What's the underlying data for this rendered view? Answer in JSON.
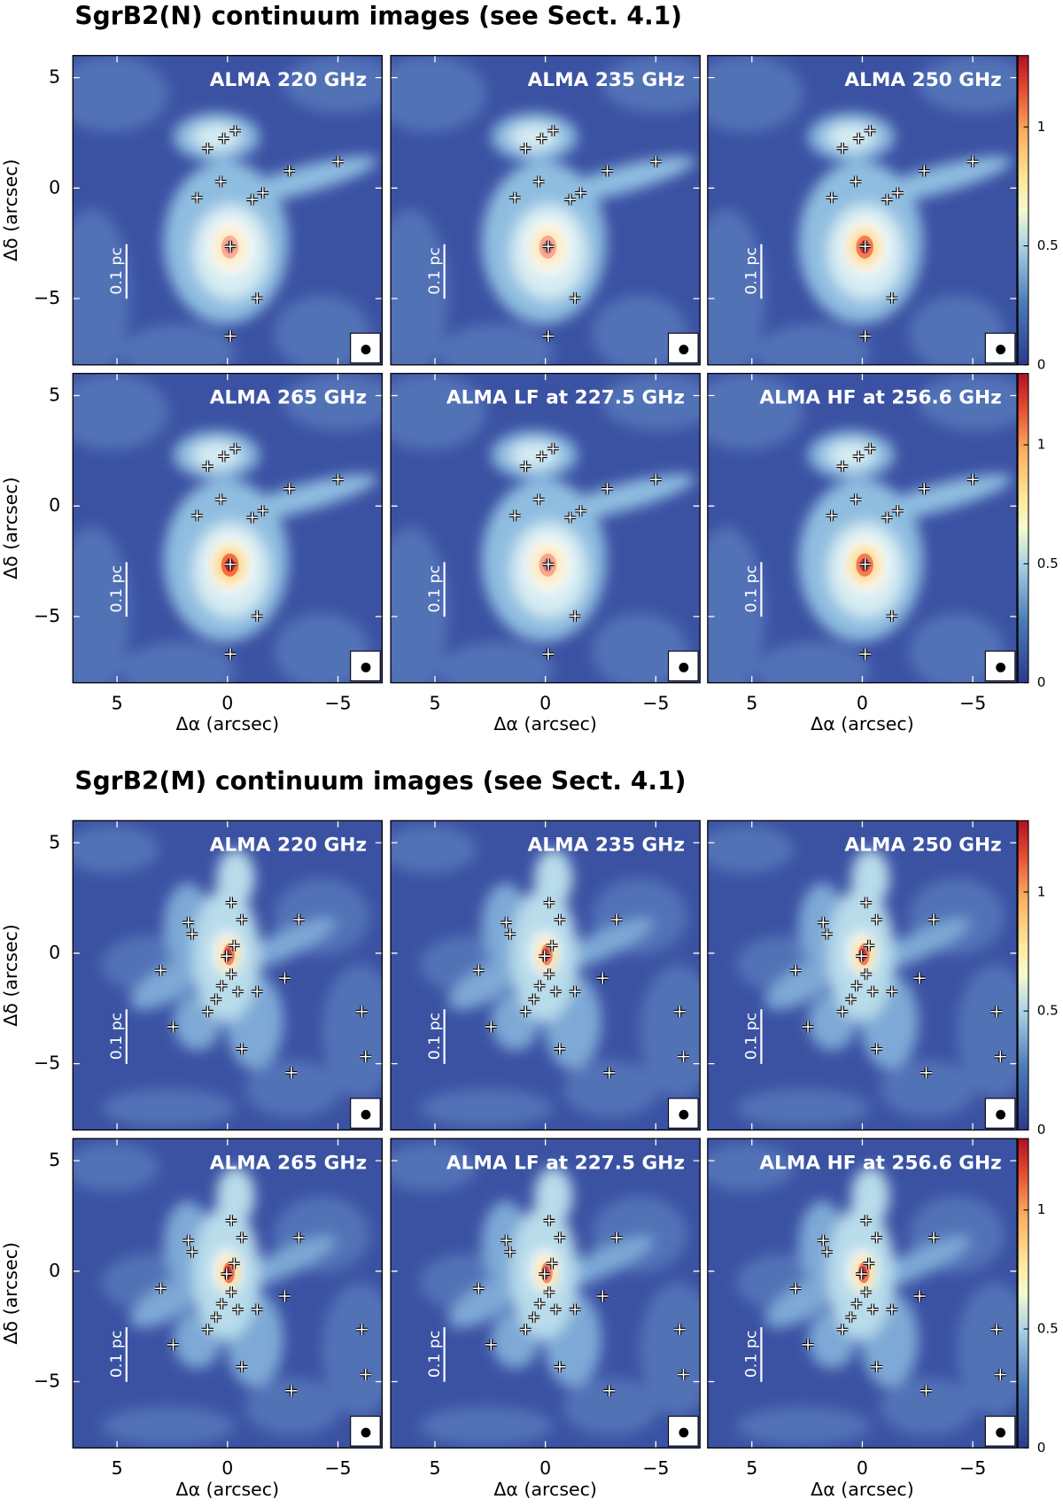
{
  "sections": [
    {
      "title": "SgrB2(N) continuum images (see Sect. 4.1)",
      "sources": {
        "x": [
          0.9,
          0.17,
          -0.35,
          0.3,
          1.38,
          -1.12,
          -1.6,
          -2.8,
          -5.0,
          -0.13,
          -1.34,
          -0.13
        ],
        "y": [
          1.8,
          2.25,
          2.6,
          0.3,
          -0.43,
          -0.52,
          -0.22,
          0.78,
          1.2,
          -2.64,
          -4.98,
          -6.7
        ]
      }
    },
    {
      "title": "SgrB2(M) continuum images (see Sect. 4.1)",
      "sources": {
        "x": [
          1.77,
          1.6,
          -0.17,
          -0.65,
          -3.23,
          3.02,
          0.04,
          -0.3,
          -0.17,
          0.26,
          0.52,
          0.9,
          -0.47,
          -1.34,
          -2.59,
          2.46,
          -0.65,
          -2.89,
          -6.08,
          -6.25
        ],
        "y": [
          1.39,
          0.87,
          2.29,
          1.52,
          1.52,
          -0.78,
          -0.13,
          0.35,
          -0.95,
          -1.47,
          -2.08,
          -2.64,
          -1.73,
          -1.73,
          -1.13,
          -3.33,
          -4.33,
          -5.41,
          -2.64,
          -4.68
        ]
      }
    }
  ],
  "panels": [
    "ALMA 220 GHz",
    "ALMA 235 GHz",
    "ALMA 250 GHz",
    "ALMA 265 GHz",
    "ALMA LF at 227.5 GHz",
    "ALMA HF at 256.6 GHz"
  ],
  "xlabel": "Δα (arcsec)",
  "ylabel": "Δδ (arcsec)",
  "xlim": [
    7,
    -7
  ],
  "ylim": [
    -8,
    6
  ],
  "xticks": [
    5,
    0,
    {
      "value": -5,
      "label": "−5"
    }
  ],
  "yticks": [
    5,
    0,
    {
      "value": -5,
      "label": "−5"
    }
  ],
  "colorbar": {
    "lim": [
      0,
      1.3
    ],
    "ticks": [
      0,
      0.5,
      1
    ]
  },
  "scalebar": "0.1 pc"
}
